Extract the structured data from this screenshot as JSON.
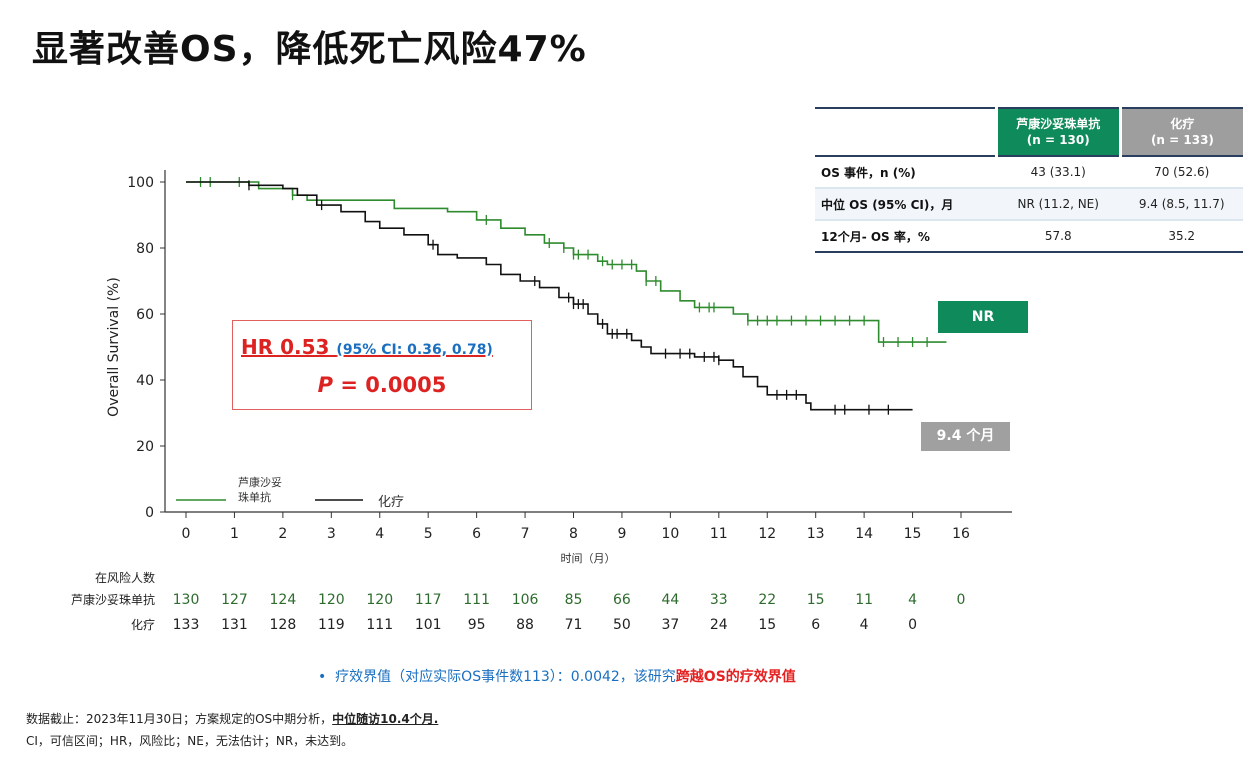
{
  "title": "显著改善OS，降低死亡风险47%",
  "summary_table": {
    "headers": [
      {
        "name": "芦康沙妥珠单抗",
        "n": "(n = 130)"
      },
      {
        "name": "化疗",
        "n": "(n = 133)"
      }
    ],
    "rows": [
      {
        "label": "OS 事件，n (%)",
        "a": "43 (33.1)",
        "b": "70 (52.6)"
      },
      {
        "label": "中位 OS (95% CI)，月",
        "a": "NR (11.2, NE)",
        "b": "9.4 (8.5, 11.7)"
      },
      {
        "label": "12个月- OS 率，%",
        "a": "57.8",
        "b": "35.2"
      }
    ]
  },
  "hr": {
    "main": "HR 0.53",
    "ci": "(95% CI: 0.36, 0.78)",
    "p_label": "P",
    "p_value": " = 0.0005"
  },
  "tags": {
    "nr": "NR",
    "median_chemo": "9.4 个月"
  },
  "chart_data": {
    "type": "line",
    "title": "",
    "xlabel": "时间（月）",
    "ylabel": "Overall Survival (%)",
    "xlim": [
      0,
      16
    ],
    "ylim": [
      0,
      100
    ],
    "xticks": [
      "0",
      "1",
      "2",
      "3",
      "4",
      "5",
      "6",
      "7",
      "8",
      "9",
      "10",
      "11",
      "12",
      "13",
      "14",
      "15",
      "16"
    ],
    "yticks": [
      "0",
      "20",
      "40",
      "60",
      "80",
      "100"
    ],
    "legend": {
      "position": "bottom-left"
    },
    "series": [
      {
        "name": "芦康沙妥珠单抗",
        "color": "#2e8b2e",
        "steps": [
          [
            0,
            100
          ],
          [
            1.5,
            98
          ],
          [
            2.2,
            96
          ],
          [
            2.5,
            94.5
          ],
          [
            4.3,
            92
          ],
          [
            5.4,
            91
          ],
          [
            6,
            88.5
          ],
          [
            6.5,
            86
          ],
          [
            7,
            84
          ],
          [
            7.4,
            81.5
          ],
          [
            7.8,
            80
          ],
          [
            8,
            78
          ],
          [
            8.5,
            76
          ],
          [
            8.7,
            75
          ],
          [
            9.3,
            73
          ],
          [
            9.5,
            70
          ],
          [
            9.8,
            67
          ],
          [
            10.2,
            64
          ],
          [
            10.5,
            62
          ],
          [
            11.3,
            60
          ],
          [
            11.6,
            58
          ],
          [
            14.3,
            51.5
          ],
          [
            15.7,
            51.5
          ]
        ],
        "censor": [
          0.3,
          0.5,
          1.1,
          2.2,
          6.2,
          7.5,
          7.8,
          8.0,
          8.1,
          8.3,
          8.6,
          8.8,
          9.0,
          9.2,
          9.5,
          9.7,
          10.6,
          10.8,
          10.9,
          11.6,
          11.8,
          12.0,
          12.2,
          12.5,
          12.8,
          13.1,
          13.4,
          13.7,
          14.0,
          14.4,
          14.7,
          15.0,
          15.3
        ]
      },
      {
        "name": "化疗",
        "color": "#111111",
        "steps": [
          [
            0,
            100
          ],
          [
            1.3,
            99
          ],
          [
            2,
            98
          ],
          [
            2.3,
            96
          ],
          [
            2.7,
            93
          ],
          [
            3.2,
            91
          ],
          [
            3.7,
            88
          ],
          [
            4,
            86
          ],
          [
            4.5,
            84
          ],
          [
            5,
            81
          ],
          [
            5.2,
            78
          ],
          [
            5.6,
            77
          ],
          [
            6.2,
            75
          ],
          [
            6.5,
            72
          ],
          [
            6.9,
            70
          ],
          [
            7.3,
            68
          ],
          [
            7.7,
            65
          ],
          [
            8,
            63
          ],
          [
            8.3,
            60
          ],
          [
            8.5,
            57
          ],
          [
            8.7,
            54
          ],
          [
            9.2,
            52
          ],
          [
            9.4,
            50
          ],
          [
            9.6,
            48
          ],
          [
            10.5,
            47
          ],
          [
            11,
            46
          ],
          [
            11.3,
            44
          ],
          [
            11.5,
            41
          ],
          [
            11.8,
            38
          ],
          [
            12,
            35.5
          ],
          [
            12.8,
            33
          ],
          [
            12.9,
            31
          ],
          [
            15,
            31
          ]
        ],
        "censor": [
          1.3,
          2.8,
          5.1,
          7.2,
          7.9,
          8.0,
          8.1,
          8.2,
          8.6,
          8.8,
          8.9,
          9.1,
          9.9,
          10.2,
          10.4,
          10.7,
          10.9,
          11.0,
          12.2,
          12.4,
          12.6,
          13.4,
          13.6,
          14.1,
          14.5
        ]
      }
    ]
  },
  "risk_table": {
    "title": "在风险人数",
    "rows": [
      {
        "label": "芦康沙妥珠单抗",
        "color": "#2e6b2e",
        "values": [
          "130",
          "127",
          "124",
          "120",
          "120",
          "117",
          "111",
          "106",
          "85",
          "66",
          "44",
          "33",
          "22",
          "15",
          "11",
          "4",
          "0"
        ]
      },
      {
        "label": "化疗",
        "color": "#222",
        "values": [
          "133",
          "131",
          "128",
          "119",
          "111",
          "101",
          "95",
          "88",
          "71",
          "50",
          "37",
          "24",
          "15",
          "6",
          "4",
          "0"
        ]
      }
    ]
  },
  "note": {
    "bullet": "•",
    "text": "疗效界值（对应实际OS事件数113）：0.0042，该研究",
    "highlight": "跨越OS的疗效界值"
  },
  "footnotes": {
    "line1": "数据截止：2023年11月30日；方案规定的OS中期分析，",
    "line1_bold": "中位随访10.4个月.",
    "line2": "CI，可信区间；HR，风险比；NE，无法估计；NR，未达到。"
  }
}
